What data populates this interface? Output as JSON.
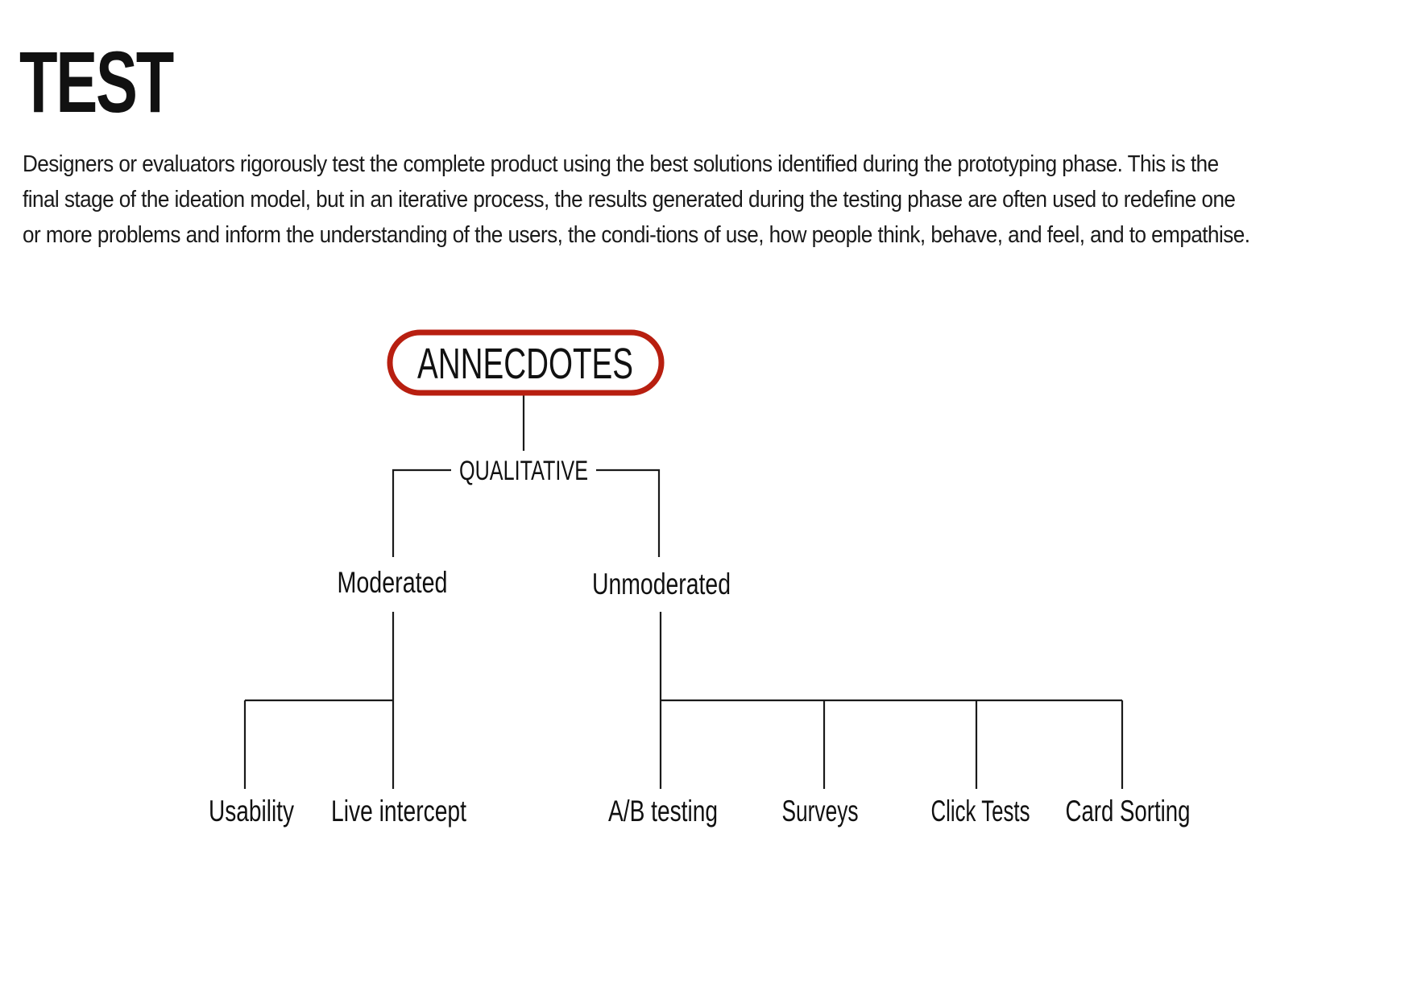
{
  "page": {
    "title": "TEST",
    "intro": "Designers or evaluators rigorously test the complete product using the best solutions identified during the prototyping phase. This is the final stage of the ideation model, but in an iterative process, the results generated during the testing phase are often used to redefine one or more problems and inform the understanding of the users, the condi-tions of use, how people think, behave, and feel, and to empathise."
  },
  "diagram": {
    "root": "ANNECDOTES",
    "category": "QUALITATIVE",
    "branches": [
      {
        "label": "Moderated",
        "children": [
          "Usability",
          "Live intercept"
        ]
      },
      {
        "label": "Unmoderated",
        "children": [
          "A/B testing",
          "Surveys",
          "Click Tests",
          "Card Sorting"
        ]
      }
    ]
  },
  "colors": {
    "root_border": "#b81f10",
    "line": "#1a1a1a",
    "text": "#111111"
  }
}
